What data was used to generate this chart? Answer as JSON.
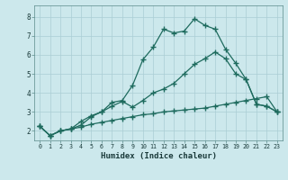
{
  "xlabel": "Humidex (Indice chaleur)",
  "bg_color": "#cce8ec",
  "line_color": "#1e6b5e",
  "grid_color": "#aacdd4",
  "xlim": [
    -0.5,
    23.5
  ],
  "ylim": [
    1.5,
    8.6
  ],
  "xticks": [
    0,
    1,
    2,
    3,
    4,
    5,
    6,
    7,
    8,
    9,
    10,
    11,
    12,
    13,
    14,
    15,
    16,
    17,
    18,
    19,
    20,
    21,
    22,
    23
  ],
  "yticks": [
    2,
    3,
    4,
    5,
    6,
    7,
    8
  ],
  "series1_x": [
    0,
    1,
    2,
    3,
    4,
    5,
    6,
    7,
    8,
    9,
    10,
    11,
    12,
    13,
    14,
    15,
    16,
    17,
    18,
    19,
    20,
    21,
    22,
    23
  ],
  "series1_y": [
    2.25,
    1.75,
    2.0,
    2.1,
    2.2,
    2.35,
    2.45,
    2.55,
    2.65,
    2.75,
    2.85,
    2.9,
    3.0,
    3.05,
    3.1,
    3.15,
    3.2,
    3.3,
    3.4,
    3.5,
    3.6,
    3.7,
    3.8,
    3.0
  ],
  "series2_x": [
    0,
    1,
    2,
    3,
    4,
    5,
    6,
    7,
    8,
    9,
    10,
    11,
    12,
    13,
    14,
    15,
    16,
    17,
    18,
    19,
    20,
    21,
    22,
    23
  ],
  "series2_y": [
    2.25,
    1.75,
    2.0,
    2.1,
    2.3,
    2.75,
    3.0,
    3.5,
    3.6,
    4.4,
    5.75,
    6.4,
    7.35,
    7.15,
    7.25,
    7.9,
    7.55,
    7.35,
    6.3,
    5.55,
    4.7,
    3.4,
    3.3,
    3.0
  ],
  "series3_x": [
    0,
    1,
    2,
    3,
    4,
    5,
    6,
    7,
    8,
    9,
    10,
    11,
    12,
    13,
    14,
    15,
    16,
    17,
    18,
    19,
    20,
    21,
    22,
    23
  ],
  "series3_y": [
    2.25,
    1.75,
    2.0,
    2.1,
    2.5,
    2.8,
    3.0,
    3.3,
    3.55,
    3.25,
    3.6,
    4.0,
    4.2,
    4.5,
    5.0,
    5.5,
    5.8,
    6.15,
    5.8,
    5.0,
    4.7,
    3.4,
    3.3,
    3.0
  ]
}
